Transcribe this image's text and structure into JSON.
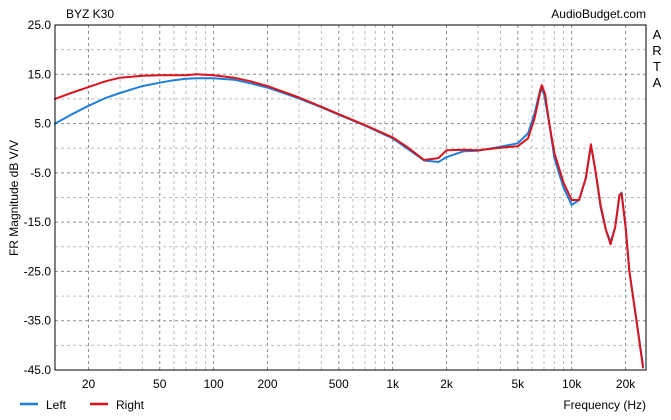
{
  "chart_data": {
    "type": "line",
    "title": "BYZ K30",
    "watermark": "AudioBudget.com",
    "side_label": [
      "A",
      "R",
      "T",
      "A"
    ],
    "xlabel": "Frequency (Hz)",
    "ylabel": "FR Magnitude dB V/V",
    "x_scale": "log",
    "xlim": [
      13,
      26000
    ],
    "ylim": [
      -45,
      25
    ],
    "y_ticks": [
      "25.0",
      "15.0",
      "5.0",
      "-5.0",
      "-15.0",
      "-25.0",
      "-35.0",
      "-45.0"
    ],
    "x_ticks": [
      {
        "value": 20,
        "label": "20"
      },
      {
        "value": 50,
        "label": "50"
      },
      {
        "value": 100,
        "label": "100"
      },
      {
        "value": 200,
        "label": "200"
      },
      {
        "value": 500,
        "label": "500"
      },
      {
        "value": 1000,
        "label": "1k"
      },
      {
        "value": 2000,
        "label": "2k"
      },
      {
        "value": 5000,
        "label": "5k"
      },
      {
        "value": 10000,
        "label": "10k"
      },
      {
        "value": 20000,
        "label": "20k"
      }
    ],
    "grid": true,
    "legend_position": "bottom-left",
    "series": [
      {
        "name": "Left",
        "color": "#1f7fd8",
        "points": [
          [
            13,
            5
          ],
          [
            16,
            6.8
          ],
          [
            20,
            8.6
          ],
          [
            25,
            10.2
          ],
          [
            30,
            11.2
          ],
          [
            40,
            12.6
          ],
          [
            50,
            13.3
          ],
          [
            60,
            13.8
          ],
          [
            70,
            14.1
          ],
          [
            80,
            14.2
          ],
          [
            100,
            14.2
          ],
          [
            130,
            13.9
          ],
          [
            160,
            13.2
          ],
          [
            200,
            12.3
          ],
          [
            300,
            10.1
          ],
          [
            400,
            8.3
          ],
          [
            500,
            6.8
          ],
          [
            700,
            4.6
          ],
          [
            1000,
            2
          ],
          [
            1200,
            0
          ],
          [
            1500,
            -2.5
          ],
          [
            1800,
            -2.8
          ],
          [
            2000,
            -1.8
          ],
          [
            2500,
            -0.6
          ],
          [
            3000,
            -0.5
          ],
          [
            4000,
            0.3
          ],
          [
            5000,
            1
          ],
          [
            5700,
            3
          ],
          [
            6200,
            7
          ],
          [
            6700,
            12.2
          ],
          [
            7000,
            11
          ],
          [
            7500,
            5
          ],
          [
            8000,
            -2
          ],
          [
            9000,
            -8
          ],
          [
            10000,
            -11.5
          ],
          [
            11000,
            -10.5
          ],
          [
            12000,
            -6
          ],
          [
            12800,
            0.5
          ],
          [
            13500,
            -4
          ],
          [
            14500,
            -12
          ],
          [
            15500,
            -16.5
          ],
          [
            16500,
            -19
          ],
          [
            17500,
            -16
          ],
          [
            18500,
            -9.5
          ],
          [
            19000,
            -9
          ],
          [
            20000,
            -16
          ],
          [
            21000,
            -25
          ],
          [
            23000,
            -35
          ],
          [
            25000,
            -44
          ]
        ]
      },
      {
        "name": "Right",
        "color": "#d9141c",
        "points": [
          [
            13,
            10
          ],
          [
            16,
            11.2
          ],
          [
            20,
            12.4
          ],
          [
            25,
            13.6
          ],
          [
            30,
            14.3
          ],
          [
            40,
            14.7
          ],
          [
            50,
            14.8
          ],
          [
            60,
            14.8
          ],
          [
            70,
            14.8
          ],
          [
            80,
            15
          ],
          [
            100,
            14.8
          ],
          [
            130,
            14.3
          ],
          [
            160,
            13.6
          ],
          [
            200,
            12.6
          ],
          [
            300,
            10.3
          ],
          [
            400,
            8.4
          ],
          [
            500,
            6.9
          ],
          [
            700,
            4.7
          ],
          [
            1000,
            2.2
          ],
          [
            1200,
            0.3
          ],
          [
            1500,
            -2.4
          ],
          [
            1800,
            -2
          ],
          [
            2000,
            -0.4
          ],
          [
            2500,
            -0.3
          ],
          [
            3000,
            -0.4
          ],
          [
            4000,
            0.1
          ],
          [
            5000,
            0.4
          ],
          [
            5700,
            2
          ],
          [
            6200,
            6
          ],
          [
            6800,
            12.8
          ],
          [
            7100,
            11
          ],
          [
            7500,
            5
          ],
          [
            8000,
            -1
          ],
          [
            9000,
            -7
          ],
          [
            10000,
            -10.5
          ],
          [
            11000,
            -10.5
          ],
          [
            12000,
            -6
          ],
          [
            12800,
            0.8
          ],
          [
            13500,
            -4
          ],
          [
            14500,
            -11.5
          ],
          [
            15500,
            -16.5
          ],
          [
            16500,
            -19.5
          ],
          [
            17500,
            -16
          ],
          [
            18500,
            -9.5
          ],
          [
            19000,
            -9.2
          ],
          [
            20000,
            -16
          ],
          [
            21000,
            -25
          ],
          [
            23000,
            -35
          ],
          [
            25000,
            -44.5
          ]
        ]
      }
    ]
  }
}
